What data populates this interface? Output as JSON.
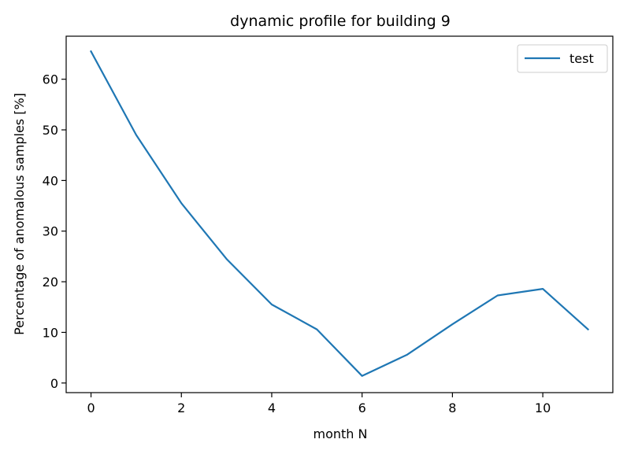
{
  "chart_data": {
    "type": "line",
    "title": "dynamic profile for building 9",
    "xlabel": "month N",
    "ylabel": "Percentage of anomalous samples [%]",
    "xlim": [
      -0.55,
      11.55
    ],
    "ylim": [
      -1.9,
      68.5
    ],
    "xticks": [
      0,
      2,
      4,
      6,
      8,
      10
    ],
    "yticks": [
      0,
      10,
      20,
      30,
      40,
      50,
      60
    ],
    "grid": false,
    "legend": {
      "placement": "top-right",
      "entries": [
        "test"
      ]
    },
    "series": [
      {
        "name": "test",
        "color": "#1f77b4",
        "x": [
          0,
          1,
          2,
          3,
          4,
          5,
          6,
          7,
          8,
          9,
          10,
          11
        ],
        "values": [
          65.5,
          49.0,
          35.5,
          24.5,
          15.5,
          10.6,
          1.4,
          5.6,
          11.6,
          17.3,
          18.6,
          10.6
        ]
      }
    ]
  }
}
